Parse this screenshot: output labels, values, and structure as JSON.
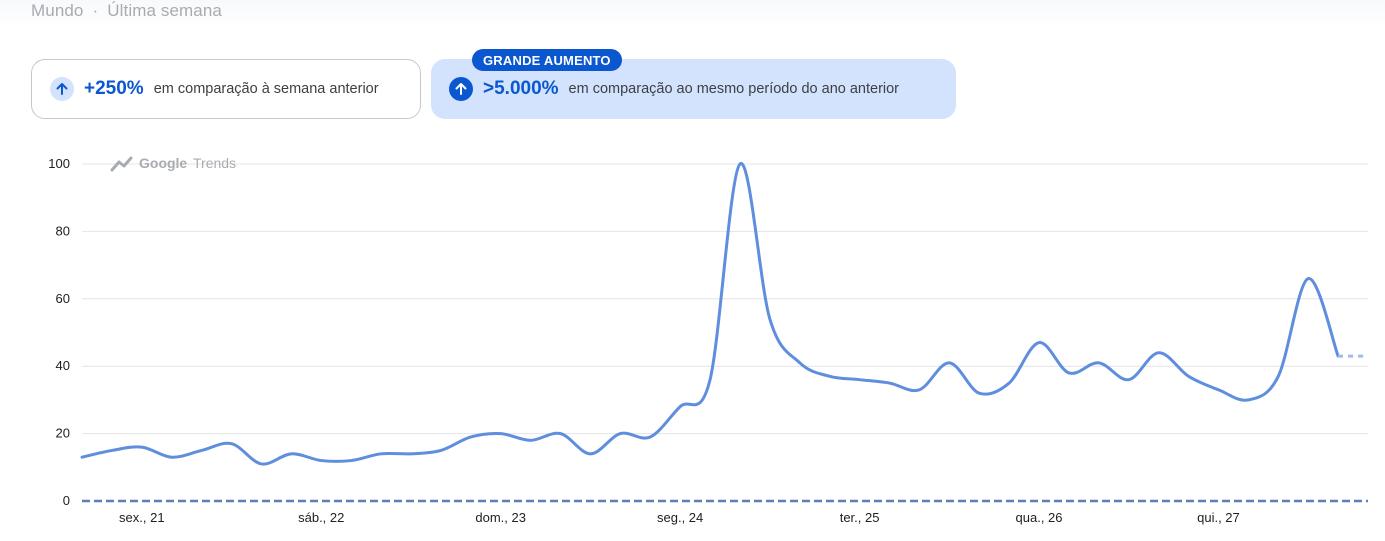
{
  "header": {
    "region": "Mundo",
    "separator": "·",
    "period": "Última semana"
  },
  "cards": [
    {
      "value": "+250%",
      "description": "em comparação à semana anterior",
      "icon": "arrow-up-icon"
    },
    {
      "badge": "GRANDE AUMENTO",
      "value": ">5.000%",
      "description": "em comparação ao mesmo período do ano anterior",
      "icon": "arrow-up-icon"
    }
  ],
  "brand": {
    "google": "Google",
    "trends": "Trends",
    "icon": "trends-logo-icon"
  },
  "colors": {
    "line": "#5f8ede",
    "accent": "#0b57d0",
    "highlight_card": "#d3e3fd",
    "grid": "#e3e4e6"
  },
  "chart_data": {
    "type": "line",
    "title": "",
    "xlabel": "",
    "ylabel": "",
    "ylim": [
      0,
      100
    ],
    "yticks": [
      0,
      20,
      40,
      60,
      80,
      100
    ],
    "grid": true,
    "categories": [
      "sex., 21",
      "sáb., 22",
      "dom., 23",
      "seg., 24",
      "ter., 25",
      "qua., 26",
      "qui., 27"
    ],
    "x_unit": "hours since start of sex., 21",
    "series": [
      {
        "values": [
          [
            -8,
            13
          ],
          [
            -4,
            15
          ],
          [
            0,
            16
          ],
          [
            4,
            13
          ],
          [
            8,
            15
          ],
          [
            12,
            17
          ],
          [
            16,
            11
          ],
          [
            20,
            14
          ],
          [
            24,
            12
          ],
          [
            28,
            12
          ],
          [
            32,
            14
          ],
          [
            36,
            14
          ],
          [
            40,
            15
          ],
          [
            44,
            19
          ],
          [
            48,
            20
          ],
          [
            52,
            18
          ],
          [
            56,
            20
          ],
          [
            60,
            14
          ],
          [
            64,
            20
          ],
          [
            68,
            19
          ],
          [
            72,
            28
          ],
          [
            76,
            36
          ],
          [
            80,
            100
          ],
          [
            84,
            54
          ],
          [
            88,
            41
          ],
          [
            92,
            37
          ],
          [
            96,
            36
          ],
          [
            100,
            35
          ],
          [
            104,
            33
          ],
          [
            108,
            41
          ],
          [
            112,
            32
          ],
          [
            116,
            35
          ],
          [
            120,
            47
          ],
          [
            124,
            38
          ],
          [
            128,
            41
          ],
          [
            132,
            36
          ],
          [
            136,
            44
          ],
          [
            140,
            37
          ],
          [
            144,
            33
          ],
          [
            148,
            30
          ],
          [
            152,
            37
          ],
          [
            156,
            66
          ],
          [
            160,
            43
          ]
        ],
        "partial_values": [
          [
            160,
            43
          ],
          [
            164,
            43
          ]
        ]
      },
      {
        "values": [
          [
            -8,
            0
          ],
          [
            164,
            0
          ]
        ],
        "style": "dashed"
      }
    ]
  }
}
